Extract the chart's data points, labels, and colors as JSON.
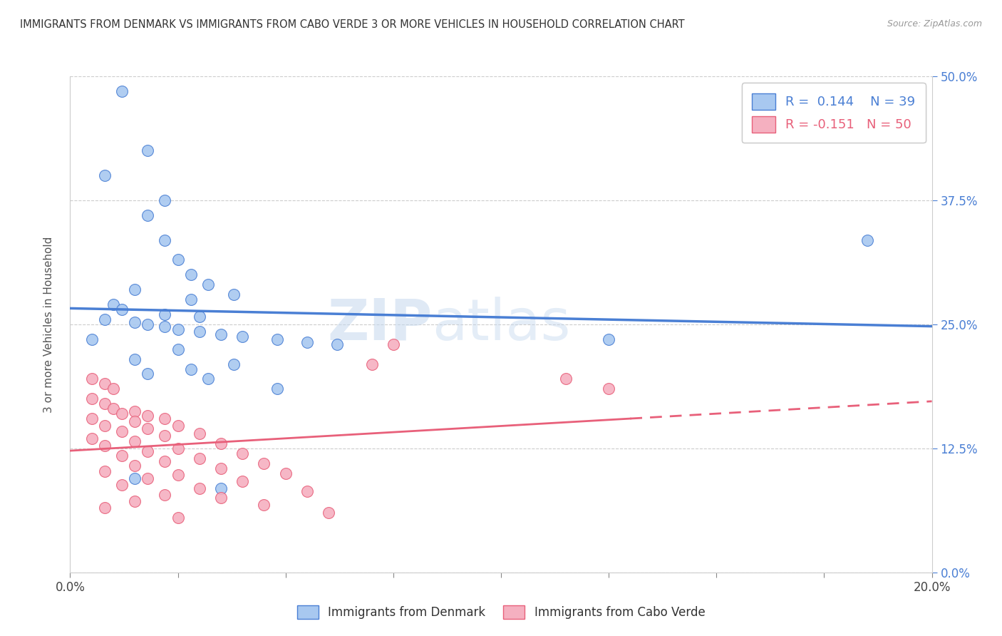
{
  "title": "IMMIGRANTS FROM DENMARK VS IMMIGRANTS FROM CABO VERDE 3 OR MORE VEHICLES IN HOUSEHOLD CORRELATION CHART",
  "source": "Source: ZipAtlas.com",
  "ylabel_label": "3 or more Vehicles in Household",
  "legend_denmark": "Immigrants from Denmark",
  "legend_caboverde": "Immigrants from Cabo Verde",
  "R_denmark": 0.144,
  "N_denmark": 39,
  "R_caboverde": -0.151,
  "N_caboverde": 50,
  "color_denmark": "#a8c8f0",
  "color_caboverde": "#f5b0c0",
  "line_color_denmark": "#4a7fd4",
  "line_color_caboverde": "#e8607a",
  "watermark_1": "ZIP",
  "watermark_2": "atlas",
  "xlim": [
    0.0,
    0.2
  ],
  "ylim": [
    0.0,
    0.5
  ],
  "xtick_vals": [
    0.0,
    0.025,
    0.05,
    0.075,
    0.1,
    0.125,
    0.15,
    0.175,
    0.2
  ],
  "ytick_vals": [
    0.0,
    0.125,
    0.25,
    0.375,
    0.5
  ],
  "denmark_points": [
    [
      0.012,
      0.485
    ],
    [
      0.018,
      0.425
    ],
    [
      0.008,
      0.4
    ],
    [
      0.022,
      0.375
    ],
    [
      0.018,
      0.36
    ],
    [
      0.022,
      0.335
    ],
    [
      0.025,
      0.315
    ],
    [
      0.028,
      0.3
    ],
    [
      0.032,
      0.29
    ],
    [
      0.015,
      0.285
    ],
    [
      0.038,
      0.28
    ],
    [
      0.028,
      0.275
    ],
    [
      0.01,
      0.27
    ],
    [
      0.012,
      0.265
    ],
    [
      0.022,
      0.26
    ],
    [
      0.03,
      0.258
    ],
    [
      0.008,
      0.255
    ],
    [
      0.015,
      0.252
    ],
    [
      0.018,
      0.25
    ],
    [
      0.022,
      0.248
    ],
    [
      0.025,
      0.245
    ],
    [
      0.03,
      0.243
    ],
    [
      0.035,
      0.24
    ],
    [
      0.04,
      0.238
    ],
    [
      0.005,
      0.235
    ],
    [
      0.048,
      0.235
    ],
    [
      0.055,
      0.232
    ],
    [
      0.062,
      0.23
    ],
    [
      0.025,
      0.225
    ],
    [
      0.015,
      0.215
    ],
    [
      0.038,
      0.21
    ],
    [
      0.028,
      0.205
    ],
    [
      0.018,
      0.2
    ],
    [
      0.032,
      0.195
    ],
    [
      0.048,
      0.185
    ],
    [
      0.015,
      0.095
    ],
    [
      0.035,
      0.085
    ],
    [
      0.185,
      0.335
    ],
    [
      0.125,
      0.235
    ]
  ],
  "caboverde_points": [
    [
      0.005,
      0.195
    ],
    [
      0.008,
      0.19
    ],
    [
      0.01,
      0.185
    ],
    [
      0.005,
      0.175
    ],
    [
      0.008,
      0.17
    ],
    [
      0.01,
      0.165
    ],
    [
      0.015,
      0.162
    ],
    [
      0.012,
      0.16
    ],
    [
      0.018,
      0.158
    ],
    [
      0.005,
      0.155
    ],
    [
      0.022,
      0.155
    ],
    [
      0.015,
      0.152
    ],
    [
      0.008,
      0.148
    ],
    [
      0.025,
      0.148
    ],
    [
      0.018,
      0.145
    ],
    [
      0.012,
      0.142
    ],
    [
      0.03,
      0.14
    ],
    [
      0.022,
      0.138
    ],
    [
      0.005,
      0.135
    ],
    [
      0.015,
      0.132
    ],
    [
      0.035,
      0.13
    ],
    [
      0.008,
      0.128
    ],
    [
      0.025,
      0.125
    ],
    [
      0.018,
      0.122
    ],
    [
      0.04,
      0.12
    ],
    [
      0.012,
      0.118
    ],
    [
      0.03,
      0.115
    ],
    [
      0.022,
      0.112
    ],
    [
      0.045,
      0.11
    ],
    [
      0.015,
      0.108
    ],
    [
      0.035,
      0.105
    ],
    [
      0.008,
      0.102
    ],
    [
      0.05,
      0.1
    ],
    [
      0.025,
      0.098
    ],
    [
      0.018,
      0.095
    ],
    [
      0.04,
      0.092
    ],
    [
      0.012,
      0.088
    ],
    [
      0.03,
      0.085
    ],
    [
      0.055,
      0.082
    ],
    [
      0.022,
      0.078
    ],
    [
      0.035,
      0.075
    ],
    [
      0.015,
      0.072
    ],
    [
      0.045,
      0.068
    ],
    [
      0.008,
      0.065
    ],
    [
      0.06,
      0.06
    ],
    [
      0.025,
      0.055
    ],
    [
      0.07,
      0.21
    ],
    [
      0.115,
      0.195
    ],
    [
      0.125,
      0.185
    ],
    [
      0.075,
      0.23
    ]
  ]
}
